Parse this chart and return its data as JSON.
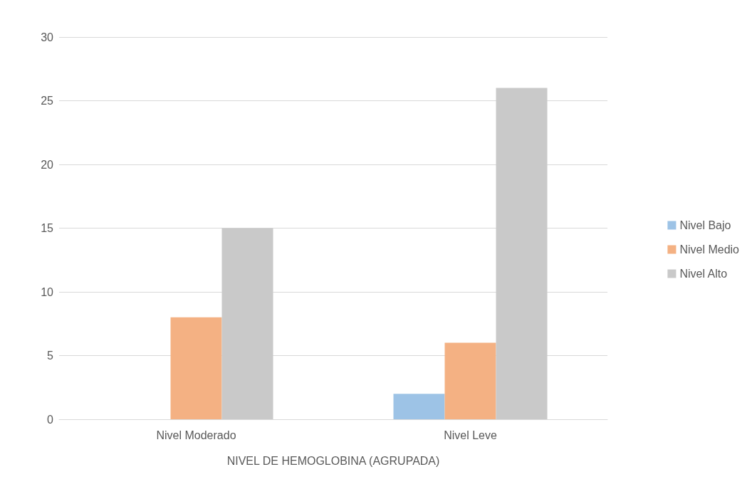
{
  "chart_data": {
    "type": "bar",
    "xlabel": "NIVEL DE HEMOGLOBINA (AGRUPADA)",
    "categories": [
      "Nivel Moderado",
      "Nivel Leve"
    ],
    "series": [
      {
        "name": "Nivel Bajo",
        "color": "#9dc3e6",
        "values": [
          0,
          2
        ]
      },
      {
        "name": "Nivel Medio",
        "color": "#f4b183",
        "values": [
          8,
          6
        ]
      },
      {
        "name": "Nivel Alto",
        "color": "#c9c9c9",
        "values": [
          15,
          26
        ]
      }
    ],
    "ylim": [
      0,
      30
    ],
    "yticks": [
      0,
      5,
      10,
      15,
      20,
      25,
      30
    ],
    "grid": "y",
    "legend": "right"
  }
}
